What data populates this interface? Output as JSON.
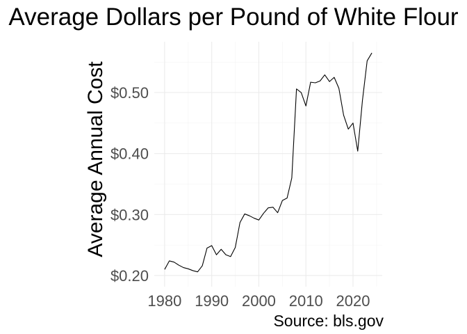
{
  "chart_data": {
    "type": "line",
    "title": "Average Dollars per Pound of White Flour",
    "xlabel": "",
    "ylabel": "Average Annual Cost",
    "caption": "Source: bls.gov",
    "xlim": [
      1980,
      2024
    ],
    "ylim": [
      0.2,
      0.565
    ],
    "x_ticks": [
      1980,
      1990,
      2000,
      2010,
      2020
    ],
    "x_tick_labels": [
      "1980",
      "1990",
      "2000",
      "2010",
      "2020"
    ],
    "y_ticks": [
      0.2,
      0.3,
      0.4,
      0.5
    ],
    "y_tick_labels": [
      "$0.20",
      "$0.30",
      "$0.40",
      "$0.50"
    ],
    "grid": true,
    "legend": "none",
    "line_color": "#000000",
    "series": [
      {
        "x": [
          1980,
          1981,
          1982,
          1983,
          1984,
          1985,
          1986,
          1987,
          1988,
          1989,
          1990,
          1991,
          1992,
          1993,
          1994,
          1995,
          1996,
          1997,
          1998,
          1999,
          2000,
          2001,
          2002,
          2003,
          2004,
          2005,
          2006,
          2007,
          2008,
          2009,
          2010,
          2011,
          2012,
          2013,
          2014,
          2015,
          2016,
          2017,
          2018,
          2019,
          2020,
          2021,
          2022,
          2023,
          2024
        ],
        "values": [
          0.21,
          0.224,
          0.222,
          0.217,
          0.213,
          0.211,
          0.208,
          0.206,
          0.216,
          0.245,
          0.249,
          0.234,
          0.243,
          0.234,
          0.231,
          0.246,
          0.287,
          0.301,
          0.298,
          0.294,
          0.291,
          0.302,
          0.311,
          0.312,
          0.303,
          0.323,
          0.327,
          0.36,
          0.506,
          0.5,
          0.478,
          0.517,
          0.516,
          0.519,
          0.529,
          0.518,
          0.525,
          0.507,
          0.463,
          0.44,
          0.45,
          0.404,
          0.487,
          0.552,
          0.565
        ]
      }
    ]
  }
}
